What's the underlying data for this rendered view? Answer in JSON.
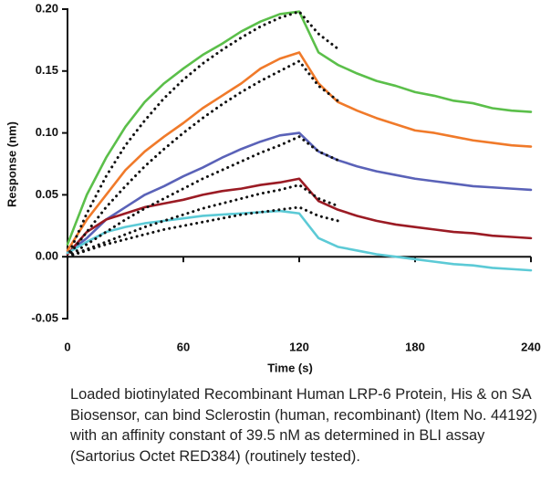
{
  "chart_data": {
    "type": "line",
    "xlabel": "Time (s)",
    "ylabel": "Response (nm)",
    "x": [
      0,
      10,
      20,
      30,
      40,
      50,
      60,
      70,
      80,
      90,
      100,
      110,
      120,
      130,
      140,
      150,
      160,
      170,
      180,
      190,
      200,
      210,
      220,
      230,
      240
    ],
    "xlim": [
      0,
      240
    ],
    "xticks": [
      0,
      60,
      120,
      180,
      240
    ],
    "ylim": [
      -0.05,
      0.2
    ],
    "yticks": [
      {
        "value": -0.05,
        "label": "-0.05"
      },
      {
        "value": 0,
        "label": "0.00"
      },
      {
        "value": 0.05,
        "label": "0.05"
      },
      {
        "value": 0.1,
        "label": "0.10"
      },
      {
        "value": 0.15,
        "label": "0.15"
      },
      {
        "value": 0.2,
        "label": "0.20"
      }
    ],
    "grid": false,
    "series": [
      {
        "color": "#5bbf4a",
        "style": "solid",
        "values": [
          0.01,
          0.05,
          0.08,
          0.105,
          0.125,
          0.14,
          0.152,
          0.163,
          0.172,
          0.182,
          0.19,
          0.196,
          0.198,
          0.165,
          0.155,
          0.148,
          0.142,
          0.138,
          0.133,
          0.13,
          0.126,
          0.124,
          0.12,
          0.118,
          0.117
        ]
      },
      {
        "color": "#f07a2a",
        "style": "solid",
        "values": [
          0.005,
          0.03,
          0.05,
          0.07,
          0.085,
          0.097,
          0.108,
          0.12,
          0.13,
          0.14,
          0.152,
          0.16,
          0.165,
          0.14,
          0.125,
          0.118,
          0.112,
          0.107,
          0.102,
          0.1,
          0.097,
          0.094,
          0.092,
          0.09,
          0.089
        ]
      },
      {
        "color": "#5a62b8",
        "style": "solid",
        "values": [
          0.003,
          0.015,
          0.03,
          0.04,
          0.05,
          0.057,
          0.065,
          0.072,
          0.08,
          0.087,
          0.093,
          0.098,
          0.1,
          0.085,
          0.078,
          0.073,
          0.069,
          0.066,
          0.063,
          0.061,
          0.059,
          0.057,
          0.056,
          0.055,
          0.054
        ]
      },
      {
        "color": "#9b1b24",
        "style": "solid",
        "values": [
          0.002,
          0.02,
          0.03,
          0.035,
          0.04,
          0.043,
          0.046,
          0.05,
          0.053,
          0.055,
          0.058,
          0.06,
          0.063,
          0.045,
          0.038,
          0.033,
          0.029,
          0.026,
          0.024,
          0.022,
          0.02,
          0.019,
          0.017,
          0.016,
          0.015
        ]
      },
      {
        "color": "#5ccad6",
        "style": "solid",
        "values": [
          0.003,
          0.012,
          0.02,
          0.024,
          0.027,
          0.029,
          0.031,
          0.033,
          0.034,
          0.035,
          0.036,
          0.037,
          0.035,
          0.015,
          0.008,
          0.005,
          0.002,
          0,
          -0.002,
          -0.004,
          -0.006,
          -0.007,
          -0.009,
          -0.01,
          -0.011
        ]
      },
      {
        "color": "#111111",
        "style": "dotted",
        "values": [
          0,
          0.035,
          0.065,
          0.09,
          0.11,
          0.128,
          0.143,
          0.156,
          0.167,
          0.177,
          0.186,
          0.193,
          0.198,
          0.18,
          0.168,
          null,
          null,
          null,
          null,
          null,
          null,
          null,
          null,
          null,
          null
        ]
      },
      {
        "color": "#111111",
        "style": "dotted",
        "values": [
          0,
          0.02,
          0.04,
          0.057,
          0.073,
          0.087,
          0.1,
          0.112,
          0.123,
          0.133,
          0.142,
          0.15,
          0.158,
          0.138,
          0.126,
          null,
          null,
          null,
          null,
          null,
          null,
          null,
          null,
          null,
          null
        ]
      },
      {
        "color": "#111111",
        "style": "dotted",
        "values": [
          0,
          0.01,
          0.02,
          0.03,
          0.039,
          0.047,
          0.055,
          0.063,
          0.07,
          0.077,
          0.084,
          0.09,
          0.097,
          0.085,
          0.078,
          null,
          null,
          null,
          null,
          null,
          null,
          null,
          null,
          null,
          null
        ]
      },
      {
        "color": "#111111",
        "style": "dotted",
        "values": [
          0,
          0.006,
          0.012,
          0.018,
          0.024,
          0.029,
          0.034,
          0.039,
          0.043,
          0.047,
          0.051,
          0.054,
          0.058,
          0.047,
          0.041,
          null,
          null,
          null,
          null,
          null,
          null,
          null,
          null,
          null,
          null
        ]
      },
      {
        "color": "#111111",
        "style": "dotted",
        "values": [
          0,
          0.005,
          0.01,
          0.014,
          0.018,
          0.022,
          0.025,
          0.028,
          0.031,
          0.034,
          0.036,
          0.038,
          0.04,
          0.033,
          0.029,
          null,
          null,
          null,
          null,
          null,
          null,
          null,
          null,
          null,
          null
        ]
      }
    ],
    "caption": "Loaded biotinylated Recombinant Human LRP-6 Protein, His & on SA Biosensor, can bind Sclerostin (human, recombinant) (Item No. 44192) with an affinity constant of 39.5 nM as determined in BLI assay (Sartorius Octet RED384) (routinely tested)."
  }
}
